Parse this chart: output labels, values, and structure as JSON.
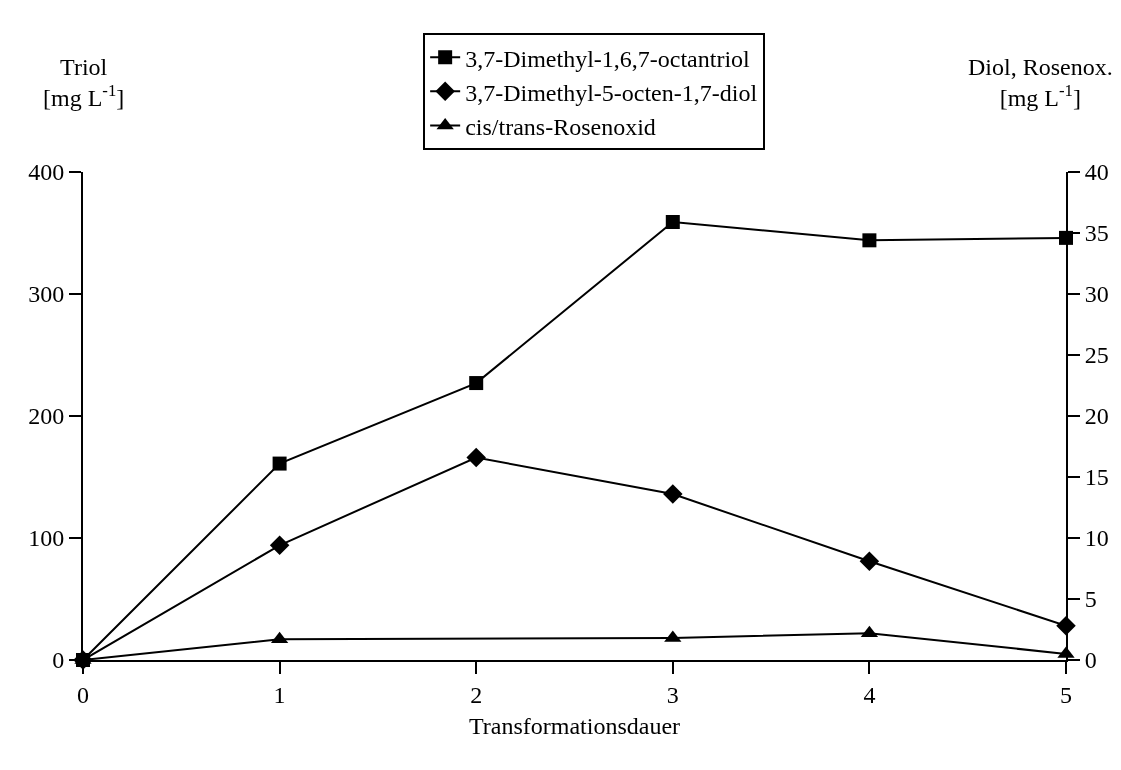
{
  "chart_data": {
    "type": "line",
    "xlabel": "Transformationsdauer",
    "ylabel": "Triol\n[mg L$^{-1}$]",
    "y2label": "Diol, Rosenox.\n[mg L$^{-1}$]",
    "x": [
      0,
      1,
      2,
      3,
      4,
      5
    ],
    "series": [
      {
        "name": "3,7-Dimethyl-1,6,7-octantriol",
        "color": "#000000",
        "marker": "square",
        "values": [
          0,
          161,
          227,
          359,
          344,
          346
        ]
      },
      {
        "name": "3,7-Dimethyl-5-octen-1,7-diol",
        "color": "#000000",
        "marker": "diamond",
        "axis": "y2",
        "values": [
          0,
          9.4,
          16.6,
          13.6,
          8.1,
          2.8
        ]
      },
      {
        "name": "cis/trans-Rosenoxid",
        "color": "#000000",
        "marker": "triangle",
        "axis": "y2",
        "x": [
          0,
          1,
          3,
          4,
          5
        ],
        "values": [
          0,
          1.7,
          1.8,
          2.2,
          0.5
        ]
      }
    ],
    "xlim": [
      0,
      5
    ],
    "xticks": [
      0,
      1,
      2,
      3,
      4,
      5
    ],
    "ylim": [
      0,
      400
    ],
    "yticks": [
      0,
      100,
      200,
      300,
      400
    ],
    "y2lim": [
      0,
      40
    ],
    "y2ticks": [
      0,
      5,
      10,
      15,
      20,
      25,
      30,
      35,
      40
    ],
    "legend": "top",
    "line_style": "solid"
  }
}
